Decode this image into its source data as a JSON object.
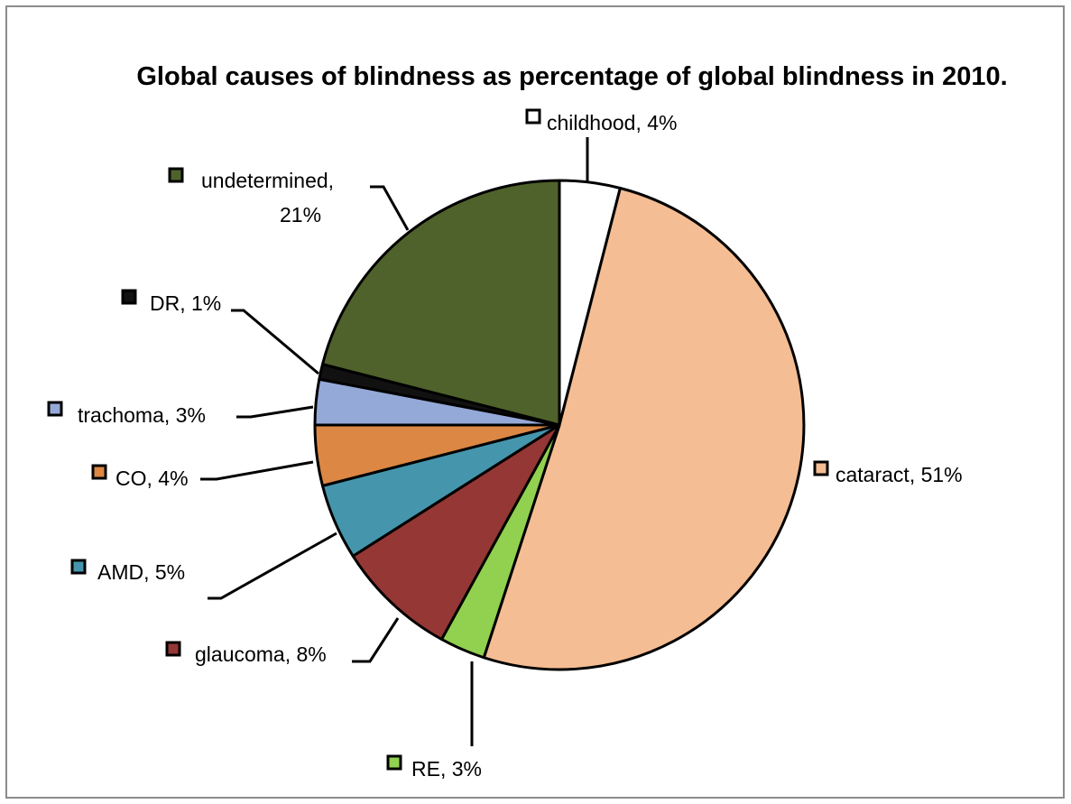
{
  "chart_data": {
    "type": "pie",
    "title": "Global causes of blindness as percentage of global blindness in 2010.",
    "slices": [
      {
        "label": "childhood, 4%",
        "value": 4,
        "color": "#ffffff"
      },
      {
        "label": "cataract, 51%",
        "value": 51,
        "color": "#f4bd93"
      },
      {
        "label": "RE, 3%",
        "value": 3,
        "color": "#92d050"
      },
      {
        "label": "glaucoma, 8%",
        "value": 8,
        "color": "#953735"
      },
      {
        "label": "AMD, 5%",
        "value": 5,
        "color": "#4596ad"
      },
      {
        "label": "CO, 4%",
        "value": 4,
        "color": "#dc8744"
      },
      {
        "label": "trachoma, 3%",
        "value": 3,
        "color": "#95a9d8"
      },
      {
        "label": "DR, 1%",
        "value": 1,
        "color": "#111111"
      },
      {
        "label_line1": "undetermined,",
        "label_line2": "21%",
        "value": 21,
        "color": "#4f622b"
      }
    ],
    "legend": "none",
    "grid": false
  }
}
